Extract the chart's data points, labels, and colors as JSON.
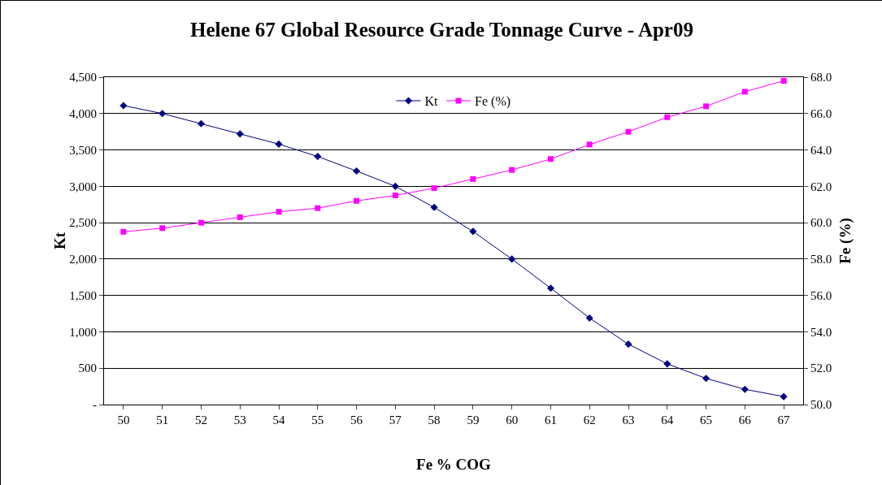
{
  "chart_data": {
    "type": "line",
    "title": "Helene 67 Global Resource Grade Tonnage Curve - Apr09",
    "xlabel": "Fe % COG",
    "ylabel": "Kt",
    "y2label": "Fe (%)",
    "categories": [
      "50",
      "51",
      "52",
      "53",
      "54",
      "55",
      "56",
      "57",
      "58",
      "59",
      "60",
      "61",
      "62",
      "63",
      "64",
      "65",
      "66",
      "67"
    ],
    "series": [
      {
        "name": "Kt",
        "color": "#000080",
        "marker": "diamond",
        "values": [
          4110,
          4000,
          3860,
          3720,
          3580,
          3410,
          3210,
          3000,
          2710,
          2380,
          2000,
          1600,
          1190,
          830,
          560,
          360,
          210,
          110
        ]
      },
      {
        "name": "Fe (%)",
        "color": "#ff00ff",
        "marker": "square",
        "axis": "y2",
        "values": [
          59.5,
          59.7,
          60.0,
          60.3,
          60.6,
          60.8,
          61.2,
          61.5,
          61.9,
          62.4,
          62.9,
          63.5,
          64.3,
          65.0,
          65.8,
          66.4,
          67.2,
          67.8
        ]
      }
    ],
    "ylim": [
      0,
      4500
    ],
    "yticks": [
      {
        "value": 0,
        "label": "-"
      },
      {
        "value": 500,
        "label": "500"
      },
      {
        "value": 1000,
        "label": "1,000"
      },
      {
        "value": 1500,
        "label": "1,500"
      },
      {
        "value": 2000,
        "label": "2,000"
      },
      {
        "value": 2500,
        "label": "2,500"
      },
      {
        "value": 3000,
        "label": "3,000"
      },
      {
        "value": 3500,
        "label": "3,500"
      },
      {
        "value": 4000,
        "label": "4,000"
      },
      {
        "value": 4500,
        "label": "4,500"
      }
    ],
    "y2lim": [
      50,
      68
    ],
    "y2ticks": [
      {
        "value": 50,
        "label": "50.0"
      },
      {
        "value": 52,
        "label": "52.0"
      },
      {
        "value": 54,
        "label": "54.0"
      },
      {
        "value": 56,
        "label": "56.0"
      },
      {
        "value": 58,
        "label": "58.0"
      },
      {
        "value": 60,
        "label": "60.0"
      },
      {
        "value": 62,
        "label": "62.0"
      },
      {
        "value": 64,
        "label": "64.0"
      },
      {
        "value": 66,
        "label": "66.0"
      },
      {
        "value": 68,
        "label": "68.0"
      }
    ],
    "grid": "y",
    "legend": "top",
    "line_style": "solid"
  }
}
